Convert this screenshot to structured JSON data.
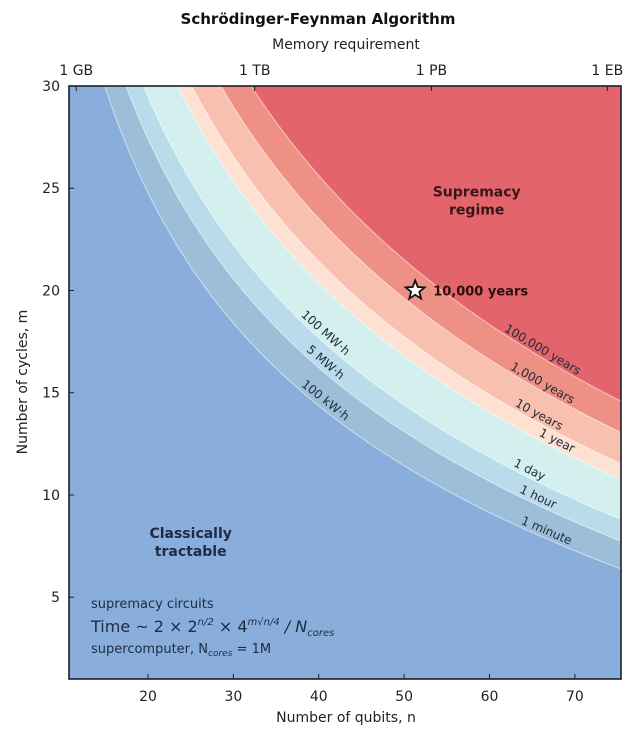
{
  "chart_data": {
    "type": "heatmap",
    "subtype": "filled-contour",
    "title": "Schrödinger-Feynman Algorithm",
    "top_axis": {
      "label": "Memory requirement",
      "ticks": [
        {
          "n": 11.6,
          "label": "1 GB"
        },
        {
          "n": 32.5,
          "label": "1 TB"
        },
        {
          "n": 53.2,
          "label": "1 PB"
        },
        {
          "n": 73.8,
          "label": "1 EB"
        }
      ]
    },
    "xlabel": "Number of qubits, n",
    "ylabel": "Number of cycles, m",
    "xlim": [
      10.75,
      75.4
    ],
    "ylim": [
      1,
      30
    ],
    "xticks": [
      20,
      30,
      40,
      50,
      60,
      70
    ],
    "yticks": [
      5,
      10,
      15,
      20,
      25,
      30
    ],
    "model": {
      "description": "log2(time in seconds) = n/2 + m*sqrt(n)/2 + offset",
      "offset_log2": -59.5
    },
    "levels": [
      {
        "label": "1 minute",
        "seconds": 60,
        "energy_label": "100 kW·h"
      },
      {
        "label": "1 hour",
        "seconds": 3600,
        "energy_label": "5 MW·h"
      },
      {
        "label": "1 day",
        "seconds": 86400,
        "energy_label": "100 MW·h"
      },
      {
        "label": "1 year",
        "seconds": 31557600,
        "energy_label": ""
      },
      {
        "label": "10 years",
        "seconds": 315576000,
        "energy_label": ""
      },
      {
        "label": "1,000 years",
        "seconds": 31557600000,
        "energy_label": ""
      },
      {
        "label": "100,000 years",
        "seconds": 3155760000000,
        "energy_label": ""
      }
    ],
    "band_colors": [
      "#89aedc",
      "#9cbed8",
      "#b9dbea",
      "#d3f0ee",
      "#fde1d3",
      "#f8c0ae",
      "#ee9083",
      "#e3656b"
    ],
    "marker": {
      "n": 51.3,
      "m": 20,
      "label": "10,000 years",
      "symbol": "star"
    },
    "regions": [
      {
        "id": "classical",
        "lines": [
          "Classically",
          "tractable"
        ],
        "n": 25,
        "m": 7.9
      },
      {
        "id": "supremacy",
        "lines": [
          "Supremacy",
          "regime"
        ],
        "n": 58.5,
        "m": 24.6
      }
    ],
    "annotation": {
      "line1": "supremacy circuits",
      "formula_prefix": "Time ~ 2 × 2",
      "formula_exp1": "n/2",
      "formula_mid": " × 4",
      "formula_exp2": "m√n/4",
      "formula_div": " / N",
      "formula_sub": "cores",
      "line3_prefix": "supercomputer, N",
      "line3_sub": "cores",
      "line3_suffix": " = 1M"
    }
  }
}
